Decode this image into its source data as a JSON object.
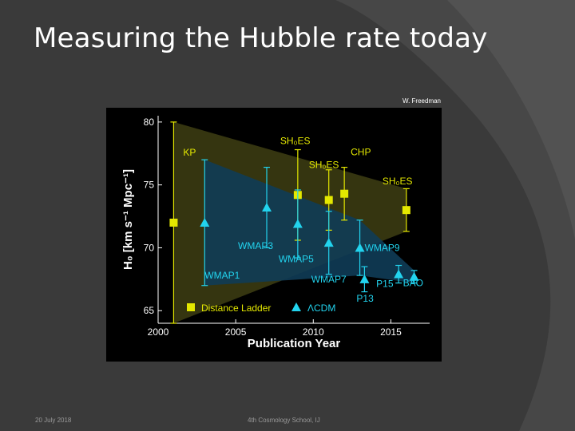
{
  "slide": {
    "title": "Measuring the Hubble rate today",
    "credit": "W. Freedman",
    "footer_date": "20 July 2018",
    "footer_event": "4th Cosmology School, IJ"
  },
  "colors": {
    "background": "#3a3a3a",
    "distance_ladder": "#e4e800",
    "lcdm": "#22d3ee",
    "band_ladder": "#3b3b12",
    "band_lcdm": "#0f3c57"
  },
  "chart_data": {
    "type": "scatter",
    "xlabel": "Publication Year",
    "ylabel": "H₀ [km s⁻¹ Mpc⁻¹]",
    "xlim": [
      2000,
      2017.5
    ],
    "ylim": [
      64,
      80.5
    ],
    "xticks": [
      2000,
      2005,
      2010,
      2015
    ],
    "yticks": [
      65,
      70,
      75,
      80
    ],
    "legend": [
      "Distance Ladder",
      "ΛCDM"
    ],
    "series": [
      {
        "name": "Distance Ladder",
        "marker": "square",
        "points": [
          {
            "x": 2001,
            "y": 72.0,
            "err": 8.0,
            "label": "KP"
          },
          {
            "x": 2009,
            "y": 74.2,
            "err": 3.6,
            "label": "SH₀ES"
          },
          {
            "x": 2011,
            "y": 73.8,
            "err": 2.4,
            "label": "SH₀ES"
          },
          {
            "x": 2012,
            "y": 74.3,
            "err": 2.1,
            "label": "CHP"
          },
          {
            "x": 2016,
            "y": 73.0,
            "err": 1.7,
            "label": "SH₀ES"
          }
        ]
      },
      {
        "name": "ΛCDM",
        "marker": "triangle",
        "points": [
          {
            "x": 2003,
            "y": 72.0,
            "err": 5.0,
            "label": "WMAP1"
          },
          {
            "x": 2007,
            "y": 73.2,
            "err": 3.2,
            "label": "WMAP3"
          },
          {
            "x": 2009,
            "y": 71.9,
            "err": 2.7,
            "label": "WMAP5"
          },
          {
            "x": 2011,
            "y": 70.4,
            "err": 2.5,
            "label": "WMAP7"
          },
          {
            "x": 2013,
            "y": 70.0,
            "err": 2.2,
            "label": "WMAP9"
          },
          {
            "x": 2013.3,
            "y": 67.5,
            "err": 1.0,
            "label": "P13"
          },
          {
            "x": 2015.5,
            "y": 67.9,
            "err": 0.7,
            "label": "P15"
          },
          {
            "x": 2016.5,
            "y": 67.7,
            "err": 0.5,
            "label": "BAO"
          }
        ]
      }
    ],
    "bands": [
      {
        "name": "Distance Ladder",
        "upper": [
          [
            2001,
            80
          ],
          [
            2016,
            74.7
          ]
        ],
        "lower": [
          [
            2001,
            64
          ],
          [
            2016,
            71.3
          ]
        ]
      },
      {
        "name": "ΛCDM",
        "upper": [
          [
            2003,
            77
          ],
          [
            2013,
            72.2
          ],
          [
            2016.5,
            68.2
          ]
        ],
        "lower": [
          [
            2003,
            67
          ],
          [
            2013,
            67.8
          ],
          [
            2016.5,
            67.2
          ]
        ]
      }
    ]
  }
}
